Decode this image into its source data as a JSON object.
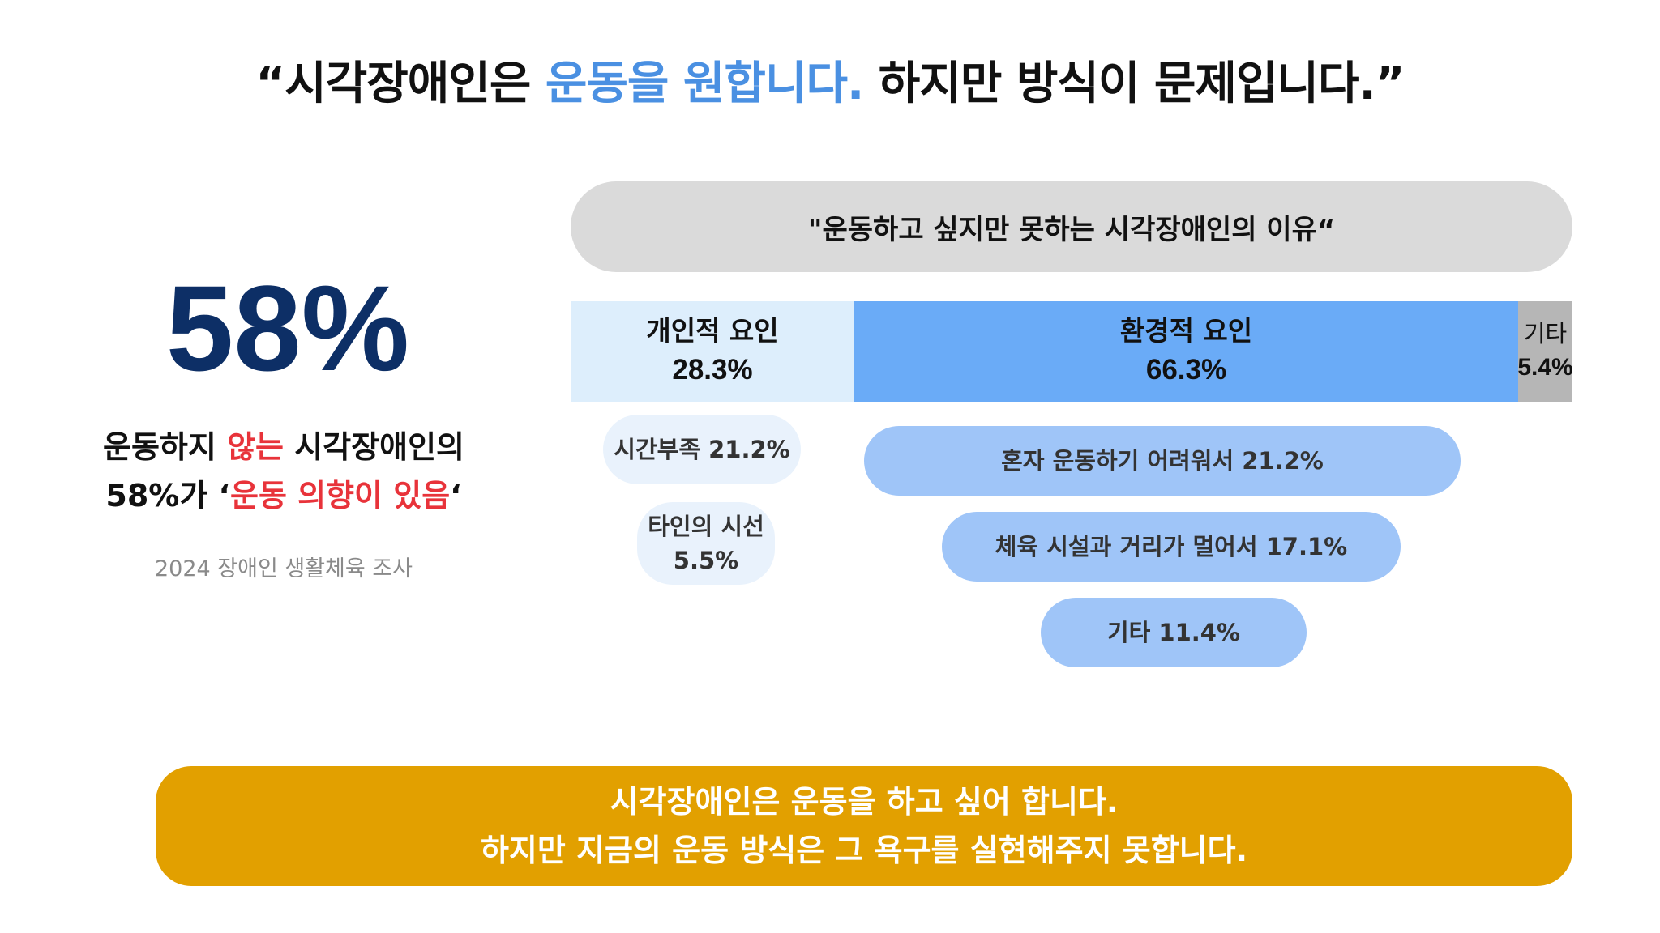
{
  "headline": {
    "open_quote": "“",
    "part1": "시각장애인은 ",
    "accent": "운동을 원합니다.",
    "part2": " 하지만 방식이 문제입니다.",
    "close_quote": "”"
  },
  "stat": {
    "value": "58%",
    "line1_a": "운동하지 ",
    "line1_red": "않는",
    "line1_b": " 시각장애인의",
    "line2_a": "58%가 ‘",
    "line2_red": "운동 의향이 있음",
    "line2_b": "‘",
    "source": "2024 장애인 생활체육 조사"
  },
  "chart_data": {
    "type": "bar",
    "title": "\"운동하고 싶지만 못하는 시각장애인의 이유“",
    "categories": [
      "개인적 요인",
      "환경적 요인",
      "기타"
    ],
    "values": [
      28.3,
      66.3,
      5.4
    ],
    "value_labels": [
      "28.3%",
      "66.3%",
      "5.4%"
    ],
    "colors": [
      "#ddeefc",
      "#6aabf7",
      "#b6b6b6"
    ],
    "breakdown": {
      "개인적 요인": [
        {
          "label": "시간부족",
          "value": 21.2,
          "text": "시간부족 21.2%"
        },
        {
          "label": "타인의 시선",
          "value": 5.5,
          "text_line1": "타인의 시선",
          "text_line2": "5.5%"
        }
      ],
      "환경적 요인": [
        {
          "label": "혼자 운동하기 어려워서",
          "value": 21.2,
          "text": "혼자 운동하기 어려워서 21.2%"
        },
        {
          "label": "체육 시설과 거리가 멀어서",
          "value": 17.1,
          "text": "체육 시설과 거리가 멀어서 17.1%"
        },
        {
          "label": "기타",
          "value": 11.4,
          "text": "기타 11.4%"
        }
      ]
    }
  },
  "banner": {
    "line1": "시각장애인은 운동을 하고 싶어 합니다.",
    "line2": "하지만 지금의 운동 방식은 그 욕구를 실현해주지 못합니다."
  }
}
